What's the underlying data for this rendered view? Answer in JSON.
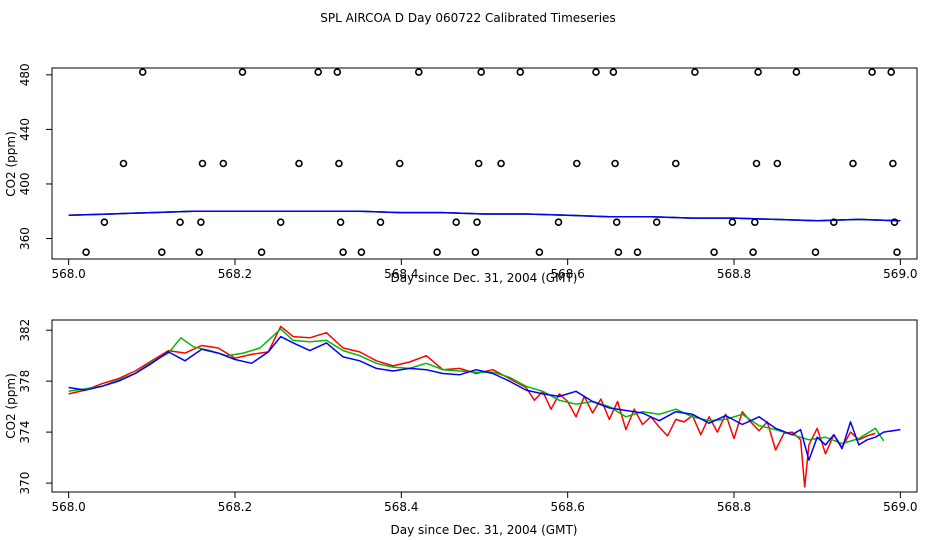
{
  "title": "SPL AIRCOA D  Day 060722  Calibrated Timeseries",
  "chart_data": [
    {
      "type": "scatter",
      "xlabel": "Day since Dec. 31, 2004 (GMT)",
      "ylabel": "CO2 (ppm)",
      "xlim": [
        567.98,
        569.02
      ],
      "ylim": [
        345,
        485
      ],
      "xticks": [
        568.0,
        568.2,
        568.4,
        568.6,
        568.8,
        569.0
      ],
      "xtick_labels": [
        "568.0",
        "568.2",
        "568.4",
        "568.6",
        "568.8",
        "569.0"
      ],
      "yticks": [
        360,
        400,
        440,
        480
      ],
      "ytick_labels": [
        "360",
        "400",
        "440",
        "480"
      ],
      "points": {
        "x": [
          568.021,
          568.043,
          568.066,
          568.089,
          568.112,
          568.134,
          568.157,
          568.159,
          568.161,
          568.186,
          568.209,
          568.232,
          568.255,
          568.277,
          568.3,
          568.323,
          568.325,
          568.327,
          568.33,
          568.352,
          568.375,
          568.398,
          568.421,
          568.443,
          568.466,
          568.489,
          568.491,
          568.493,
          568.496,
          568.52,
          568.543,
          568.566,
          568.589,
          568.611,
          568.634,
          568.655,
          568.657,
          568.659,
          568.661,
          568.684,
          568.707,
          568.73,
          568.753,
          568.776,
          568.798,
          568.823,
          568.825,
          568.827,
          568.829,
          568.852,
          568.875,
          568.898,
          568.92,
          568.943,
          568.966,
          568.989,
          568.991,
          568.993,
          568.996
        ],
        "y": [
          350,
          372,
          415,
          482,
          350,
          372,
          350,
          372,
          415,
          415,
          482,
          350,
          372,
          415,
          482,
          482,
          415,
          372,
          350,
          350,
          372,
          415,
          482,
          350,
          372,
          350,
          372,
          415,
          482,
          415,
          482,
          350,
          372,
          415,
          482,
          482,
          415,
          372,
          350,
          350,
          372,
          415,
          482,
          350,
          372,
          350,
          372,
          415,
          482,
          415,
          482,
          350,
          372,
          415,
          482,
          482,
          415,
          372,
          350
        ]
      },
      "series": [
        {
          "name": "red",
          "color": "#ff0000",
          "x": [
            568.0,
            568.05,
            568.1,
            568.15,
            568.2,
            568.25,
            568.3,
            568.35,
            568.4,
            568.45,
            568.5,
            568.55,
            568.6,
            568.65,
            568.7,
            568.75,
            568.8,
            568.85,
            568.9,
            568.95,
            569.0
          ],
          "values": [
            377,
            378,
            379,
            380,
            380,
            380,
            380,
            380,
            379,
            379,
            378,
            378,
            377,
            376,
            376,
            375,
            375,
            374,
            373,
            374,
            373
          ]
        },
        {
          "name": "green",
          "color": "#00bb00",
          "x": [
            568.0,
            568.05,
            568.1,
            568.15,
            568.2,
            568.25,
            568.3,
            568.35,
            568.4,
            568.45,
            568.5,
            568.55,
            568.6,
            568.65,
            568.7,
            568.75,
            568.8,
            568.85,
            568.9,
            568.95,
            569.0
          ],
          "values": [
            377,
            378,
            379,
            380,
            380,
            380,
            380,
            380,
            379,
            379,
            378,
            378,
            377,
            376,
            376,
            375,
            375,
            374,
            373,
            374,
            373
          ]
        },
        {
          "name": "blue",
          "color": "#0000ff",
          "x": [
            568.0,
            568.05,
            568.1,
            568.15,
            568.2,
            568.25,
            568.3,
            568.35,
            568.4,
            568.45,
            568.5,
            568.55,
            568.6,
            568.65,
            568.7,
            568.75,
            568.8,
            568.85,
            568.9,
            568.95,
            569.0
          ],
          "values": [
            377,
            378,
            379,
            380,
            380,
            380,
            380,
            380,
            379,
            379,
            378,
            378,
            377,
            376,
            376,
            375,
            375,
            374,
            373,
            374,
            373
          ]
        }
      ]
    },
    {
      "type": "line",
      "xlabel": "Day since Dec. 31, 2004 (GMT)",
      "ylabel": "CO2 (ppm)",
      "xlim": [
        567.98,
        569.02
      ],
      "ylim": [
        369.3,
        382.8
      ],
      "xticks": [
        568.0,
        568.2,
        568.4,
        568.6,
        568.8,
        569.0
      ],
      "xtick_labels": [
        "568.0",
        "568.2",
        "568.4",
        "568.6",
        "568.8",
        "569.0"
      ],
      "yticks": [
        370,
        374,
        378,
        382
      ],
      "ytick_labels": [
        "370",
        "374",
        "378",
        "382"
      ],
      "series": [
        {
          "name": "red",
          "color": "#ff0000",
          "x": [
            568.0,
            568.02,
            568.04,
            568.06,
            568.08,
            568.1,
            568.12,
            568.14,
            568.16,
            568.18,
            568.2,
            568.22,
            568.24,
            568.255,
            568.27,
            568.29,
            568.31,
            568.33,
            568.35,
            568.37,
            568.39,
            568.41,
            568.43,
            568.45,
            568.47,
            568.49,
            568.51,
            568.53,
            568.55,
            568.56,
            568.57,
            568.58,
            568.59,
            568.6,
            568.61,
            568.62,
            568.63,
            568.64,
            568.65,
            568.66,
            568.67,
            568.68,
            568.69,
            568.7,
            568.71,
            568.72,
            568.73,
            568.74,
            568.75,
            568.76,
            568.77,
            568.78,
            568.79,
            568.8,
            568.81,
            568.82,
            568.83,
            568.84,
            568.85,
            568.86,
            568.87,
            568.88,
            568.885,
            568.89,
            568.9,
            568.91,
            568.92,
            568.93,
            568.94,
            568.95,
            568.96,
            568.97
          ],
          "values": [
            377.0,
            377.3,
            377.8,
            378.2,
            378.8,
            379.6,
            380.4,
            380.2,
            380.8,
            380.6,
            379.8,
            380.1,
            380.3,
            382.3,
            381.5,
            381.4,
            381.8,
            380.6,
            380.3,
            379.6,
            379.2,
            379.5,
            380.0,
            378.9,
            379.0,
            378.6,
            378.9,
            378.2,
            377.5,
            376.5,
            377.2,
            375.8,
            377.0,
            376.4,
            375.2,
            376.8,
            375.5,
            376.6,
            375.0,
            376.4,
            374.2,
            375.8,
            374.6,
            375.2,
            374.4,
            373.7,
            375.0,
            374.8,
            375.3,
            373.8,
            375.2,
            374.0,
            375.4,
            373.5,
            375.6,
            374.8,
            374.1,
            374.8,
            372.6,
            373.9,
            374.0,
            373.4,
            369.7,
            373.0,
            374.3,
            372.3,
            373.8,
            372.8,
            374.0,
            373.4,
            373.7,
            373.9
          ]
        },
        {
          "name": "green",
          "color": "#00bb00",
          "x": [
            568.0,
            568.02,
            568.04,
            568.06,
            568.08,
            568.1,
            568.12,
            568.135,
            568.15,
            568.17,
            568.19,
            568.21,
            568.23,
            568.255,
            568.27,
            568.29,
            568.31,
            568.33,
            568.35,
            568.37,
            568.39,
            568.41,
            568.43,
            568.45,
            568.47,
            568.49,
            568.51,
            568.53,
            568.55,
            568.57,
            568.59,
            568.61,
            568.63,
            568.65,
            568.67,
            568.69,
            568.71,
            568.73,
            568.75,
            568.77,
            568.79,
            568.81,
            568.83,
            568.85,
            568.87,
            568.89,
            568.91,
            568.93,
            568.95,
            568.97,
            568.98
          ],
          "values": [
            377.2,
            377.4,
            377.6,
            378.1,
            378.6,
            379.5,
            380.2,
            381.4,
            380.7,
            380.4,
            380.0,
            380.2,
            380.6,
            382.1,
            381.2,
            381.1,
            381.2,
            380.4,
            380.0,
            379.4,
            379.1,
            379.0,
            379.4,
            378.9,
            378.8,
            378.7,
            378.7,
            378.3,
            377.6,
            377.2,
            376.5,
            376.2,
            376.4,
            376.0,
            375.2,
            375.6,
            375.4,
            375.8,
            375.2,
            374.9,
            375.0,
            375.4,
            374.5,
            374.2,
            373.8,
            373.4,
            373.6,
            373.1,
            373.5,
            374.3,
            373.3
          ]
        },
        {
          "name": "blue",
          "color": "#0000ff",
          "x": [
            568.0,
            568.02,
            568.04,
            568.06,
            568.08,
            568.1,
            568.12,
            568.14,
            568.16,
            568.18,
            568.2,
            568.22,
            568.24,
            568.255,
            568.27,
            568.29,
            568.31,
            568.33,
            568.35,
            568.37,
            568.39,
            568.41,
            568.43,
            568.45,
            568.47,
            568.49,
            568.51,
            568.53,
            568.55,
            568.57,
            568.59,
            568.61,
            568.63,
            568.65,
            568.67,
            568.69,
            568.71,
            568.73,
            568.75,
            568.77,
            568.79,
            568.81,
            568.83,
            568.85,
            568.87,
            568.88,
            568.89,
            568.9,
            568.91,
            568.92,
            568.93,
            568.94,
            568.95,
            568.96,
            568.97,
            568.98,
            569.0
          ],
          "values": [
            377.5,
            377.3,
            377.6,
            378.0,
            378.6,
            379.4,
            380.3,
            379.6,
            380.5,
            380.2,
            379.7,
            379.4,
            380.3,
            381.5,
            381.0,
            380.4,
            381.0,
            379.9,
            379.6,
            379.0,
            378.8,
            379.0,
            378.9,
            378.6,
            378.5,
            378.9,
            378.6,
            378.0,
            377.3,
            377.0,
            376.8,
            377.2,
            376.4,
            375.9,
            375.7,
            375.5,
            374.9,
            375.6,
            375.4,
            374.7,
            375.3,
            374.6,
            375.2,
            374.3,
            373.8,
            374.2,
            371.8,
            373.6,
            373.0,
            373.8,
            372.7,
            374.8,
            373.0,
            373.4,
            373.6,
            374.0,
            374.2
          ]
        }
      ]
    }
  ]
}
